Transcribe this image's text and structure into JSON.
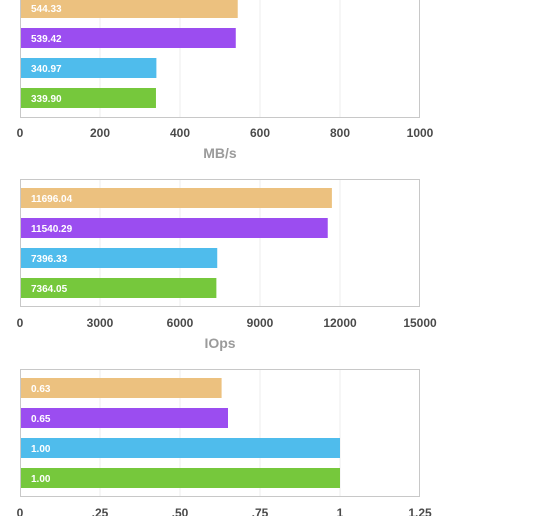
{
  "chart_data": [
    {
      "type": "bar",
      "orientation": "horizontal",
      "xlabel": "MB/s",
      "xlim": [
        0,
        1000
      ],
      "xticks": [
        "0",
        "200",
        "400",
        "600",
        "800",
        "1000"
      ],
      "bars": [
        {
          "value": 544.33,
          "label": "544.33",
          "color": "#ecc17f"
        },
        {
          "value": 539.42,
          "label": "539.42",
          "color": "#9b4df0"
        },
        {
          "value": 340.97,
          "label": "340.97",
          "color": "#4fbcec"
        },
        {
          "value": 339.9,
          "label": "339.90",
          "color": "#76c83c"
        }
      ],
      "grid": true
    },
    {
      "type": "bar",
      "orientation": "horizontal",
      "xlabel": "IOps",
      "xlim": [
        0,
        15000
      ],
      "xticks": [
        "0",
        "3000",
        "6000",
        "9000",
        "12000",
        "15000"
      ],
      "bars": [
        {
          "value": 11696.04,
          "label": "11696.04",
          "color": "#ecc17f"
        },
        {
          "value": 11540.29,
          "label": "11540.29",
          "color": "#9b4df0"
        },
        {
          "value": 7396.33,
          "label": "7396.33",
          "color": "#4fbcec"
        },
        {
          "value": 7364.05,
          "label": "7364.05",
          "color": "#76c83c"
        }
      ],
      "grid": true
    },
    {
      "type": "bar",
      "orientation": "horizontal",
      "xlabel": "",
      "xlim": [
        0,
        1.25
      ],
      "xticks": [
        "0",
        ".25",
        ".50",
        ".75",
        "1",
        "1.25"
      ],
      "bars": [
        {
          "value": 0.63,
          "label": "0.63",
          "color": "#ecc17f"
        },
        {
          "value": 0.65,
          "label": "0.65",
          "color": "#9b4df0"
        },
        {
          "value": 1.0,
          "label": "1.00",
          "color": "#4fbcec"
        },
        {
          "value": 1.0,
          "label": "1.00",
          "color": "#76c83c"
        }
      ],
      "grid": true
    }
  ]
}
